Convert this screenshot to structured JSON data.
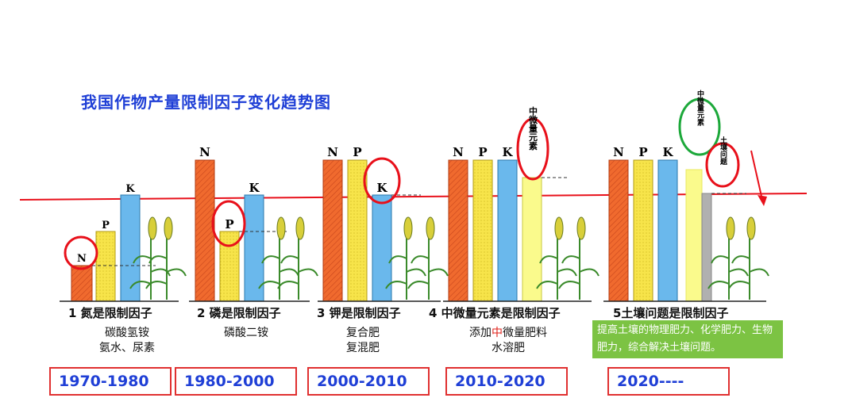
{
  "title": "我国作物产量限制因子变化趋势图",
  "nutrients": {
    "n": "N",
    "p": "P",
    "k": "K",
    "micro_vertical": "中微量元素",
    "soil_vertical": "土壤问题"
  },
  "stages": [
    {
      "caption": "1 氮是限制因子",
      "fertilizer": [
        "碳酸氢铵",
        "氨水、尿素"
      ],
      "period": "1970-1980"
    },
    {
      "caption": "2 磷是限制因子",
      "fertilizer": [
        "磷酸二铵"
      ],
      "period": "1980-2000"
    },
    {
      "caption": "3 钾是限制因子",
      "fertilizer": [
        "复合肥",
        "复混肥"
      ],
      "period": "2000-2010"
    },
    {
      "caption": "4 中微量元素是限制因子",
      "fertilizer_prefix": "添加",
      "fertilizer_highlight": "中",
      "fertilizer_suffix": "微量肥料",
      "fertilizer2": "水溶肥",
      "period": "2010-2020"
    },
    {
      "caption": "5土壤问题是限制因子",
      "period": "2020----"
    }
  ],
  "note": "提高土壤的物理肥力、化学肥力、生物肥力，综合解决土壤问题。",
  "colors": {
    "n_bar": "#f06a2e",
    "p_bar": "#f7e44a",
    "k_bar": "#6ab8ec",
    "micro_bar": "#fafa8c",
    "soil_bar": "#b0b0b0",
    "circle_red": "#e8101a",
    "circle_green": "#1ca83a",
    "title": "#1f3fd6",
    "note_bg": "#7cc343"
  }
}
